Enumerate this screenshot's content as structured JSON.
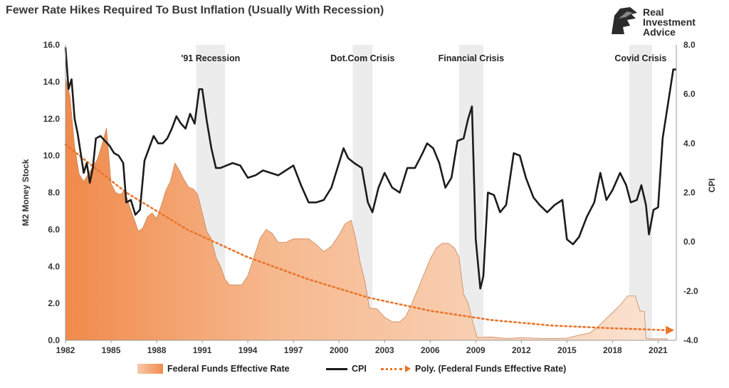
{
  "header": {
    "title": "Fewer Rate Hikes Required To Bust Inflation (Usually With Recession)",
    "logo_lines": [
      "Real",
      "Investment",
      "Advice"
    ]
  },
  "chart_data": {
    "type": "area",
    "title": "Fewer Rate Hikes Required To Bust Inflation (Usually With Recession)",
    "ylabel_left": "M2 Money Stock",
    "ylabel_right": "CPI",
    "xlabel": "",
    "x_ticks": [
      "1982",
      "1985",
      "1988",
      "1991",
      "1994",
      "1997",
      "2000",
      "2003",
      "2006",
      "2009",
      "2012",
      "2015",
      "2018",
      "2021"
    ],
    "xlim": [
      1982,
      2022.2
    ],
    "left_ticks": [
      "0.0",
      "2.0",
      "4.0",
      "6.0",
      "8.0",
      "10.0",
      "12.0",
      "14.0",
      "16.0"
    ],
    "left_ylim": [
      0,
      16
    ],
    "right_ticks": [
      "-4.0",
      "-2.0",
      "0.0",
      "2.0",
      "4.0",
      "6.0",
      "8.0"
    ],
    "right_ylim": [
      -4,
      8
    ],
    "grid": false,
    "legend_position": "bottom",
    "recessions": [
      {
        "label": "'91 Recession",
        "start": 1990.6,
        "end": 1992.5
      },
      {
        "label": "Dot.Com Crisis",
        "start": 2000.9,
        "end": 2002.2
      },
      {
        "label": "Financial Crisis",
        "start": 2007.9,
        "end": 2009.5
      },
      {
        "label": "Covid Crisis",
        "start": 2019.1,
        "end": 2020.6
      }
    ],
    "series": [
      {
        "name": "Federal Funds Effective Rate",
        "axis": "left",
        "style": "area",
        "x": [
          1982,
          1982.3,
          1982.6,
          1982.9,
          1983.2,
          1983.5,
          1983.8,
          1984.1,
          1984.4,
          1984.7,
          1985,
          1985.3,
          1985.6,
          1985.9,
          1986.2,
          1986.5,
          1986.8,
          1987.1,
          1987.4,
          1987.7,
          1988,
          1988.3,
          1988.6,
          1988.9,
          1989.2,
          1989.5,
          1989.8,
          1990.1,
          1990.4,
          1990.7,
          1991,
          1991.3,
          1991.6,
          1991.9,
          1992.2,
          1992.5,
          1992.8,
          1993.2,
          1993.6,
          1994,
          1994.4,
          1994.8,
          1995.2,
          1995.6,
          1996,
          1996.5,
          1997,
          1997.5,
          1998,
          1998.5,
          1999,
          1999.5,
          2000,
          2000.4,
          2000.8,
          2001.1,
          2001.4,
          2001.7,
          2002,
          2002.5,
          2003,
          2003.5,
          2004,
          2004.4,
          2004.8,
          2005.2,
          2005.6,
          2006,
          2006.4,
          2006.8,
          2007.2,
          2007.6,
          2007.9,
          2008.2,
          2008.5,
          2008.8,
          2009.1,
          2010,
          2011,
          2012,
          2013,
          2014,
          2015,
          2015.9,
          2016.5,
          2017,
          2017.5,
          2018,
          2018.5,
          2019,
          2019.5,
          2019.8,
          2020.1,
          2020.2,
          2020.5,
          2021,
          2021.6
        ],
        "values": [
          14.2,
          13.2,
          10.5,
          9.0,
          8.6,
          9.0,
          9.4,
          9.8,
          10.6,
          11.5,
          8.5,
          8.0,
          7.9,
          8.1,
          7.3,
          6.6,
          5.9,
          6.1,
          6.7,
          6.9,
          6.6,
          7.3,
          8.1,
          8.6,
          9.6,
          9.2,
          8.7,
          8.3,
          8.2,
          7.9,
          6.9,
          5.9,
          5.5,
          4.5,
          4.0,
          3.3,
          3.0,
          3.0,
          3.0,
          3.5,
          4.5,
          5.5,
          6.0,
          5.8,
          5.3,
          5.3,
          5.5,
          5.5,
          5.5,
          5.2,
          4.8,
          5.1,
          5.7,
          6.3,
          6.5,
          5.5,
          4.2,
          3.2,
          1.75,
          1.7,
          1.25,
          1.0,
          1.0,
          1.3,
          2.0,
          2.8,
          3.6,
          4.4,
          5.0,
          5.25,
          5.25,
          5.0,
          4.5,
          2.5,
          2.0,
          1.0,
          0.15,
          0.18,
          0.1,
          0.14,
          0.11,
          0.09,
          0.12,
          0.3,
          0.4,
          0.7,
          1.1,
          1.5,
          1.9,
          2.4,
          2.4,
          1.6,
          1.55,
          0.1,
          0.08,
          0.08,
          0.08
        ]
      },
      {
        "name": "CPI",
        "axis": "right",
        "style": "line",
        "x": [
          1982,
          1982.2,
          1982.4,
          1982.6,
          1982.8,
          1983,
          1983.2,
          1983.4,
          1983.6,
          1983.8,
          1984,
          1984.3,
          1984.6,
          1984.9,
          1985.2,
          1985.5,
          1985.8,
          1986,
          1986.3,
          1986.6,
          1986.9,
          1987.2,
          1987.5,
          1987.8,
          1988.1,
          1988.4,
          1988.7,
          1989,
          1989.3,
          1989.6,
          1989.9,
          1990.2,
          1990.5,
          1990.8,
          1991,
          1991.3,
          1991.6,
          1991.9,
          1992.2,
          1992.6,
          1993,
          1993.5,
          1994,
          1994.5,
          1995,
          1995.5,
          1996,
          1996.5,
          1997,
          1997.5,
          1998,
          1998.5,
          1999,
          1999.5,
          2000,
          2000.3,
          2000.6,
          2001,
          2001.5,
          2001.9,
          2002.2,
          2002.6,
          2003,
          2003.5,
          2004,
          2004.5,
          2005,
          2005.5,
          2005.8,
          2006.2,
          2006.6,
          2007,
          2007.4,
          2007.8,
          2008.2,
          2008.5,
          2008.75,
          2009,
          2009.3,
          2009.5,
          2009.8,
          2010.2,
          2010.6,
          2011,
          2011.5,
          2011.9,
          2012.3,
          2012.8,
          2013.2,
          2013.7,
          2014.2,
          2014.7,
          2015,
          2015.4,
          2015.8,
          2016.3,
          2016.8,
          2017.2,
          2017.6,
          2018,
          2018.5,
          2018.9,
          2019.2,
          2019.6,
          2019.9,
          2020.2,
          2020.4,
          2020.7,
          2021,
          2021.3,
          2021.6,
          2022,
          2022.2
        ],
        "values": [
          7.9,
          6.2,
          6.6,
          5.0,
          4.4,
          3.6,
          2.8,
          3.2,
          2.4,
          3.0,
          4.2,
          4.3,
          4.1,
          3.9,
          3.6,
          3.5,
          3.2,
          1.6,
          1.7,
          1.1,
          1.3,
          3.3,
          3.8,
          4.3,
          4.0,
          4.0,
          4.2,
          4.6,
          5.1,
          4.8,
          4.6,
          5.2,
          4.8,
          6.2,
          6.2,
          4.9,
          3.8,
          3.0,
          3.0,
          3.1,
          3.2,
          3.1,
          2.6,
          2.7,
          2.9,
          2.8,
          2.7,
          2.9,
          3.1,
          2.3,
          1.6,
          1.6,
          1.7,
          2.2,
          3.2,
          3.8,
          3.4,
          3.2,
          3.0,
          1.6,
          1.2,
          2.2,
          2.8,
          2.2,
          2.0,
          3.0,
          3.0,
          3.6,
          4.0,
          3.8,
          3.2,
          2.2,
          2.6,
          4.1,
          4.2,
          5.0,
          5.5,
          0.1,
          -1.9,
          -1.4,
          2.0,
          1.9,
          1.2,
          1.5,
          3.6,
          3.5,
          2.6,
          1.8,
          1.5,
          1.2,
          1.5,
          1.7,
          0.1,
          -0.1,
          0.2,
          1.0,
          1.6,
          2.8,
          1.7,
          2.1,
          2.8,
          2.3,
          1.6,
          1.7,
          2.3,
          1.5,
          0.3,
          1.3,
          1.4,
          4.2,
          5.4,
          7.0,
          7.0
        ]
      },
      {
        "name": "Poly. (Federal Funds Effective Rate)",
        "axis": "left",
        "style": "trendline",
        "x": [
          1982,
          1986,
          1990,
          1994,
          1998,
          2002,
          2006,
          2010,
          2014,
          2018,
          2021.6
        ],
        "values": [
          10.6,
          8.0,
          6.0,
          4.5,
          3.3,
          2.3,
          1.6,
          1.1,
          0.8,
          0.65,
          0.55
        ]
      }
    ]
  }
}
